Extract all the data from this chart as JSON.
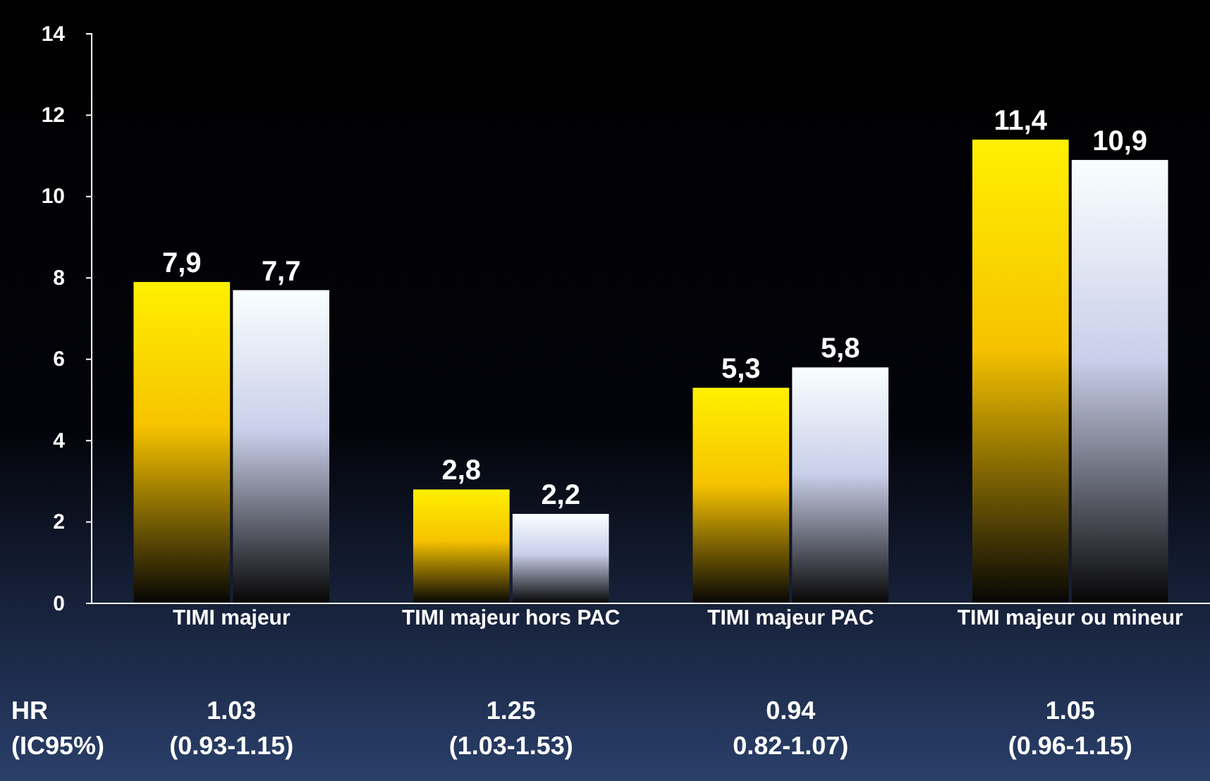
{
  "chart_data": {
    "type": "bar",
    "categories": [
      "TIMI majeur",
      "TIMI majeur hors PAC",
      "TIMI majeur PAC",
      "TIMI majeur ou mineur"
    ],
    "series": [
      {
        "color": "#f6c200",
        "values": [
          7.9,
          2.8,
          5.3,
          11.4
        ],
        "value_labels": [
          "7,9",
          "2,8",
          "5,3",
          "11,4"
        ]
      },
      {
        "color": "#c9cfe9",
        "values": [
          7.7,
          2.2,
          5.8,
          10.9
        ],
        "value_labels": [
          "7,7",
          "2,2",
          "5,8",
          "10,9"
        ]
      }
    ],
    "ylim": [
      0,
      14
    ],
    "yticks": [
      0,
      2,
      4,
      6,
      8,
      10,
      12,
      14
    ],
    "grid": false,
    "annotations": [
      "HR",
      "(IC95%)",
      "1.03",
      "(0.93-1.15)",
      "1.25",
      "(1.03-1.53)",
      "0.94",
      "0.82-1.07)",
      "1.05",
      "(0.96-1.15)"
    ]
  }
}
